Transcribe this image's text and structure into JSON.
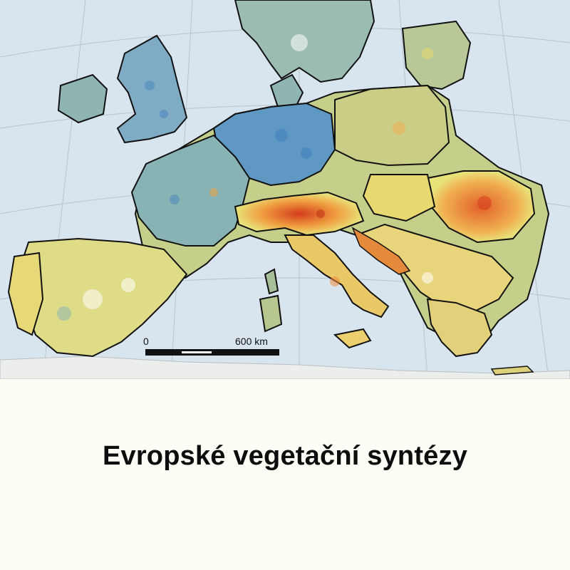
{
  "map": {
    "scale_bar": {
      "start_label": "0",
      "end_label": "600 km"
    },
    "colors": {
      "sea": "#d8e4ee",
      "land_outside": "#eef0ef",
      "vegetation_low": "#4a86c0",
      "vegetation_mid_low": "#8fb5b0",
      "vegetation_mid": "#e8e27a",
      "vegetation_high": "#f0a040",
      "vegetation_very_high": "#d43c1c",
      "border": "#111111"
    }
  },
  "caption": {
    "title": "Evropské vegetační syntézy"
  }
}
